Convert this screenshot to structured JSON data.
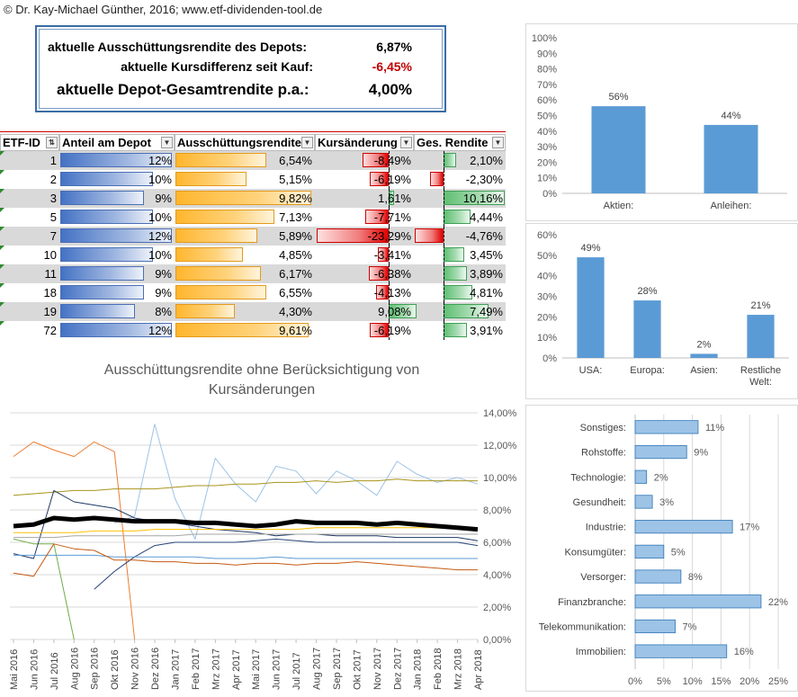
{
  "copyright": "© Dr. Kay-Michael Günther, 2016; www.etf-dividenden-tool.de",
  "summary": {
    "rows": [
      {
        "label": "aktuelle Ausschüttungsrendite des Depots:",
        "value": "6,87%"
      },
      {
        "label": "aktuelle Kursdifferenz seit Kauf:",
        "value": "-6,45%"
      },
      {
        "label": "aktuelle Depot-Gesamtrendite p.a.:",
        "value": "4,00%"
      }
    ]
  },
  "table": {
    "headers": [
      "ETF-ID",
      "Anteil am Depot",
      "Ausschüttungsrendite",
      "Kursänderung",
      "Ges. Rendite"
    ],
    "rows": [
      {
        "id": "1",
        "anteil": "12%",
        "aus": "6,54%",
        "kurs": "-8,49%",
        "ges": "2,10%",
        "a": 12,
        "r": 6.54,
        "k": -8.49,
        "g": 2.1
      },
      {
        "id": "2",
        "anteil": "10%",
        "aus": "5,15%",
        "kurs": "-6,19%",
        "ges": "-2,30%",
        "a": 10,
        "r": 5.15,
        "k": -6.19,
        "g": -2.3
      },
      {
        "id": "3",
        "anteil": "9%",
        "aus": "9,82%",
        "kurs": "1,61%",
        "ges": "10,16%",
        "a": 9,
        "r": 9.82,
        "k": 1.61,
        "g": 10.16
      },
      {
        "id": "5",
        "anteil": "10%",
        "aus": "7,13%",
        "kurs": "-7,71%",
        "ges": "4,44%",
        "a": 10,
        "r": 7.13,
        "k": -7.71,
        "g": 4.44
      },
      {
        "id": "7",
        "anteil": "12%",
        "aus": "5,89%",
        "kurs": "-23,29%",
        "ges": "-4,76%",
        "a": 12,
        "r": 5.89,
        "k": -23.29,
        "g": -4.76
      },
      {
        "id": "10",
        "anteil": "10%",
        "aus": "4,85%",
        "kurs": "-3,41%",
        "ges": "3,45%",
        "a": 10,
        "r": 4.85,
        "k": -3.41,
        "g": 3.45
      },
      {
        "id": "11",
        "anteil": "9%",
        "aus": "6,17%",
        "kurs": "-6,38%",
        "ges": "3,89%",
        "a": 9,
        "r": 6.17,
        "k": -6.38,
        "g": 3.89
      },
      {
        "id": "18",
        "anteil": "9%",
        "aus": "6,55%",
        "kurs": "-4,13%",
        "ges": "4,81%",
        "a": 9,
        "r": 6.55,
        "k": -4.13,
        "g": 4.81
      },
      {
        "id": "19",
        "anteil": "8%",
        "aus": "4,30%",
        "kurs": "9,08%",
        "ges": "7,49%",
        "a": 8,
        "r": 4.3,
        "k": 9.08,
        "g": 7.49
      },
      {
        "id": "72",
        "anteil": "12%",
        "aus": "9,61%",
        "kurs": "-6,19%",
        "ges": "3,91%",
        "a": 12,
        "r": 9.61,
        "k": -6.19,
        "g": 3.91
      }
    ]
  },
  "colors": {
    "bar": "#5b9bd5",
    "axis": "#595959",
    "grid": "#d9d9d9",
    "thick": "#000000"
  },
  "chart_data": [
    {
      "type": "bar",
      "categories": [
        "Aktien:",
        "Anleihen:"
      ],
      "values": [
        56,
        44
      ],
      "value_labels": [
        "56%",
        "44%"
      ],
      "ylim": [
        0,
        100
      ],
      "yticks": [
        "0%",
        "10%",
        "20%",
        "30%",
        "40%",
        "50%",
        "60%",
        "70%",
        "80%",
        "90%",
        "100%"
      ]
    },
    {
      "type": "bar",
      "categories": [
        "USA:",
        "Europa:",
        "Asien:",
        "Restliche Welt:"
      ],
      "values": [
        49,
        28,
        2,
        21
      ],
      "value_labels": [
        "49%",
        "28%",
        "2%",
        "21%"
      ],
      "ylim": [
        0,
        60
      ],
      "yticks": [
        "0%",
        "10%",
        "20%",
        "30%",
        "40%",
        "50%",
        "60%"
      ]
    },
    {
      "type": "bar",
      "orientation": "horizontal",
      "categories": [
        "Sonstiges:",
        "Rohstoffe:",
        "Technologie:",
        "Gesundheit:",
        "Industrie:",
        "Konsumgüter:",
        "Versorger:",
        "Finanzbranche:",
        "Telekommunikation:",
        "Immobilien:"
      ],
      "values": [
        11,
        9,
        2,
        3,
        17,
        5,
        8,
        22,
        7,
        16
      ],
      "value_labels": [
        "11%",
        "9%",
        "2%",
        "3%",
        "17%",
        "5%",
        "8%",
        "22%",
        "7%",
        "16%"
      ],
      "xlim": [
        0,
        25
      ],
      "xticks": [
        "0%",
        "5%",
        "10%",
        "15%",
        "20%",
        "25%"
      ]
    },
    {
      "type": "line",
      "title": "Ausschüttungsrendite ohne Berücksichtigung von Kursänderungen",
      "x": [
        "Mai 2016",
        "Jun 2016",
        "Jul 2016",
        "Aug 2016",
        "Sep 2016",
        "Okt 2016",
        "Nov 2016",
        "Dez 2016",
        "Jan 2017",
        "Feb 2017",
        "Mrz 2017",
        "Apr 2017",
        "Mai 2017",
        "Jun 2017",
        "Jul 2017",
        "Aug 2017",
        "Sep 2017",
        "Okt 2017",
        "Nov 2017",
        "Dez 2017",
        "Jan 2018",
        "Feb 2018",
        "Mrz 2018",
        "Apr 2018"
      ],
      "ylim": [
        0,
        14
      ],
      "yticks": [
        "0,00%",
        "2,00%",
        "4,00%",
        "6,00%",
        "8,00%",
        "10,00%",
        "12,00%",
        "14,00%"
      ],
      "series": [
        {
          "color": "#ed7d31",
          "width": 1,
          "values": [
            11.3,
            12.2,
            11.7,
            11.3,
            12.2,
            11.6,
            0.0,
            null,
            null,
            null,
            null,
            null,
            null,
            null,
            null,
            null,
            null,
            null,
            null,
            null,
            null,
            null,
            null,
            null
          ]
        },
        {
          "color": "#9dc3e6",
          "width": 1,
          "values": [
            null,
            null,
            null,
            null,
            null,
            7.2,
            7.6,
            13.3,
            8.7,
            6.2,
            11.2,
            9.6,
            8.5,
            10.7,
            10.4,
            9.0,
            10.4,
            9.8,
            8.9,
            11.0,
            10.2,
            9.7,
            10.0,
            9.6
          ]
        },
        {
          "color": "#a9951c",
          "width": 1,
          "values": [
            8.9,
            9.0,
            9.1,
            9.2,
            9.2,
            9.3,
            9.3,
            9.3,
            9.4,
            9.5,
            9.5,
            9.6,
            9.6,
            9.7,
            9.7,
            9.8,
            9.7,
            9.8,
            9.8,
            9.9,
            9.8,
            9.8,
            9.8,
            9.8
          ]
        },
        {
          "color": "#70ad47",
          "width": 1,
          "values": [
            6.2,
            5.9,
            5.9,
            0.0,
            null,
            null,
            null,
            null,
            null,
            null,
            null,
            null,
            null,
            null,
            null,
            null,
            null,
            null,
            null,
            null,
            null,
            null,
            null,
            null
          ]
        },
        {
          "color": "#264478",
          "width": 1,
          "values": [
            null,
            null,
            null,
            null,
            3.1,
            4.2,
            5.1,
            5.8,
            6.0,
            6.0,
            6.0,
            6.0,
            6.1,
            6.2,
            6.1,
            6.0,
            6.0,
            6.0,
            6.0,
            6.0,
            6.0,
            6.0,
            6.0,
            5.8
          ]
        },
        {
          "color": "#1f3864",
          "width": 1,
          "values": [
            5.3,
            5.0,
            9.2,
            8.5,
            8.3,
            8.1,
            7.5,
            7.3,
            7.2,
            7.0,
            6.8,
            6.7,
            6.6,
            6.4,
            6.5,
            6.5,
            6.4,
            6.4,
            6.4,
            6.3,
            6.3,
            6.3,
            6.3,
            6.1
          ]
        },
        {
          "color": "#5b9bd5",
          "width": 1,
          "values": [
            5.2,
            5.2,
            5.2,
            5.2,
            5.2,
            5.1,
            5.1,
            5.1,
            5.1,
            5.1,
            5.0,
            5.0,
            5.0,
            5.1,
            5.0,
            5.0,
            5.0,
            5.0,
            5.0,
            5.0,
            5.0,
            5.0,
            5.0,
            5.0
          ]
        },
        {
          "color": "#c55a11",
          "width": 1,
          "values": [
            4.1,
            3.9,
            5.9,
            5.6,
            5.5,
            4.9,
            4.9,
            4.8,
            4.8,
            4.7,
            4.7,
            4.6,
            4.7,
            4.7,
            4.6,
            4.7,
            4.7,
            4.8,
            4.7,
            4.6,
            4.5,
            4.4,
            4.3,
            4.3
          ]
        },
        {
          "color": "#ffc000",
          "width": 1,
          "values": [
            6.6,
            6.6,
            6.6,
            6.6,
            6.7,
            6.7,
            6.7,
            6.8,
            6.8,
            6.8,
            6.8,
            6.8,
            6.8,
            6.8,
            6.8,
            6.9,
            6.9,
            6.9,
            6.9,
            6.9,
            6.9,
            6.9,
            6.9,
            6.9
          ]
        },
        {
          "color": "#a5a5a5",
          "width": 1,
          "values": [
            6.3,
            6.3,
            6.3,
            6.4,
            6.4,
            6.4,
            6.4,
            6.4,
            6.4,
            6.5,
            6.5,
            6.5,
            6.5,
            6.5,
            6.5,
            6.5,
            6.5,
            6.5,
            6.5,
            6.5,
            6.5,
            6.5,
            6.5,
            6.5
          ]
        },
        {
          "color": "#000000",
          "width": 5,
          "values": [
            7.0,
            7.1,
            7.5,
            7.4,
            7.5,
            7.4,
            7.3,
            7.3,
            7.3,
            7.2,
            7.2,
            7.1,
            7.0,
            7.1,
            7.3,
            7.2,
            7.2,
            7.2,
            7.1,
            7.2,
            7.1,
            7.0,
            6.9,
            6.8
          ]
        }
      ]
    }
  ]
}
